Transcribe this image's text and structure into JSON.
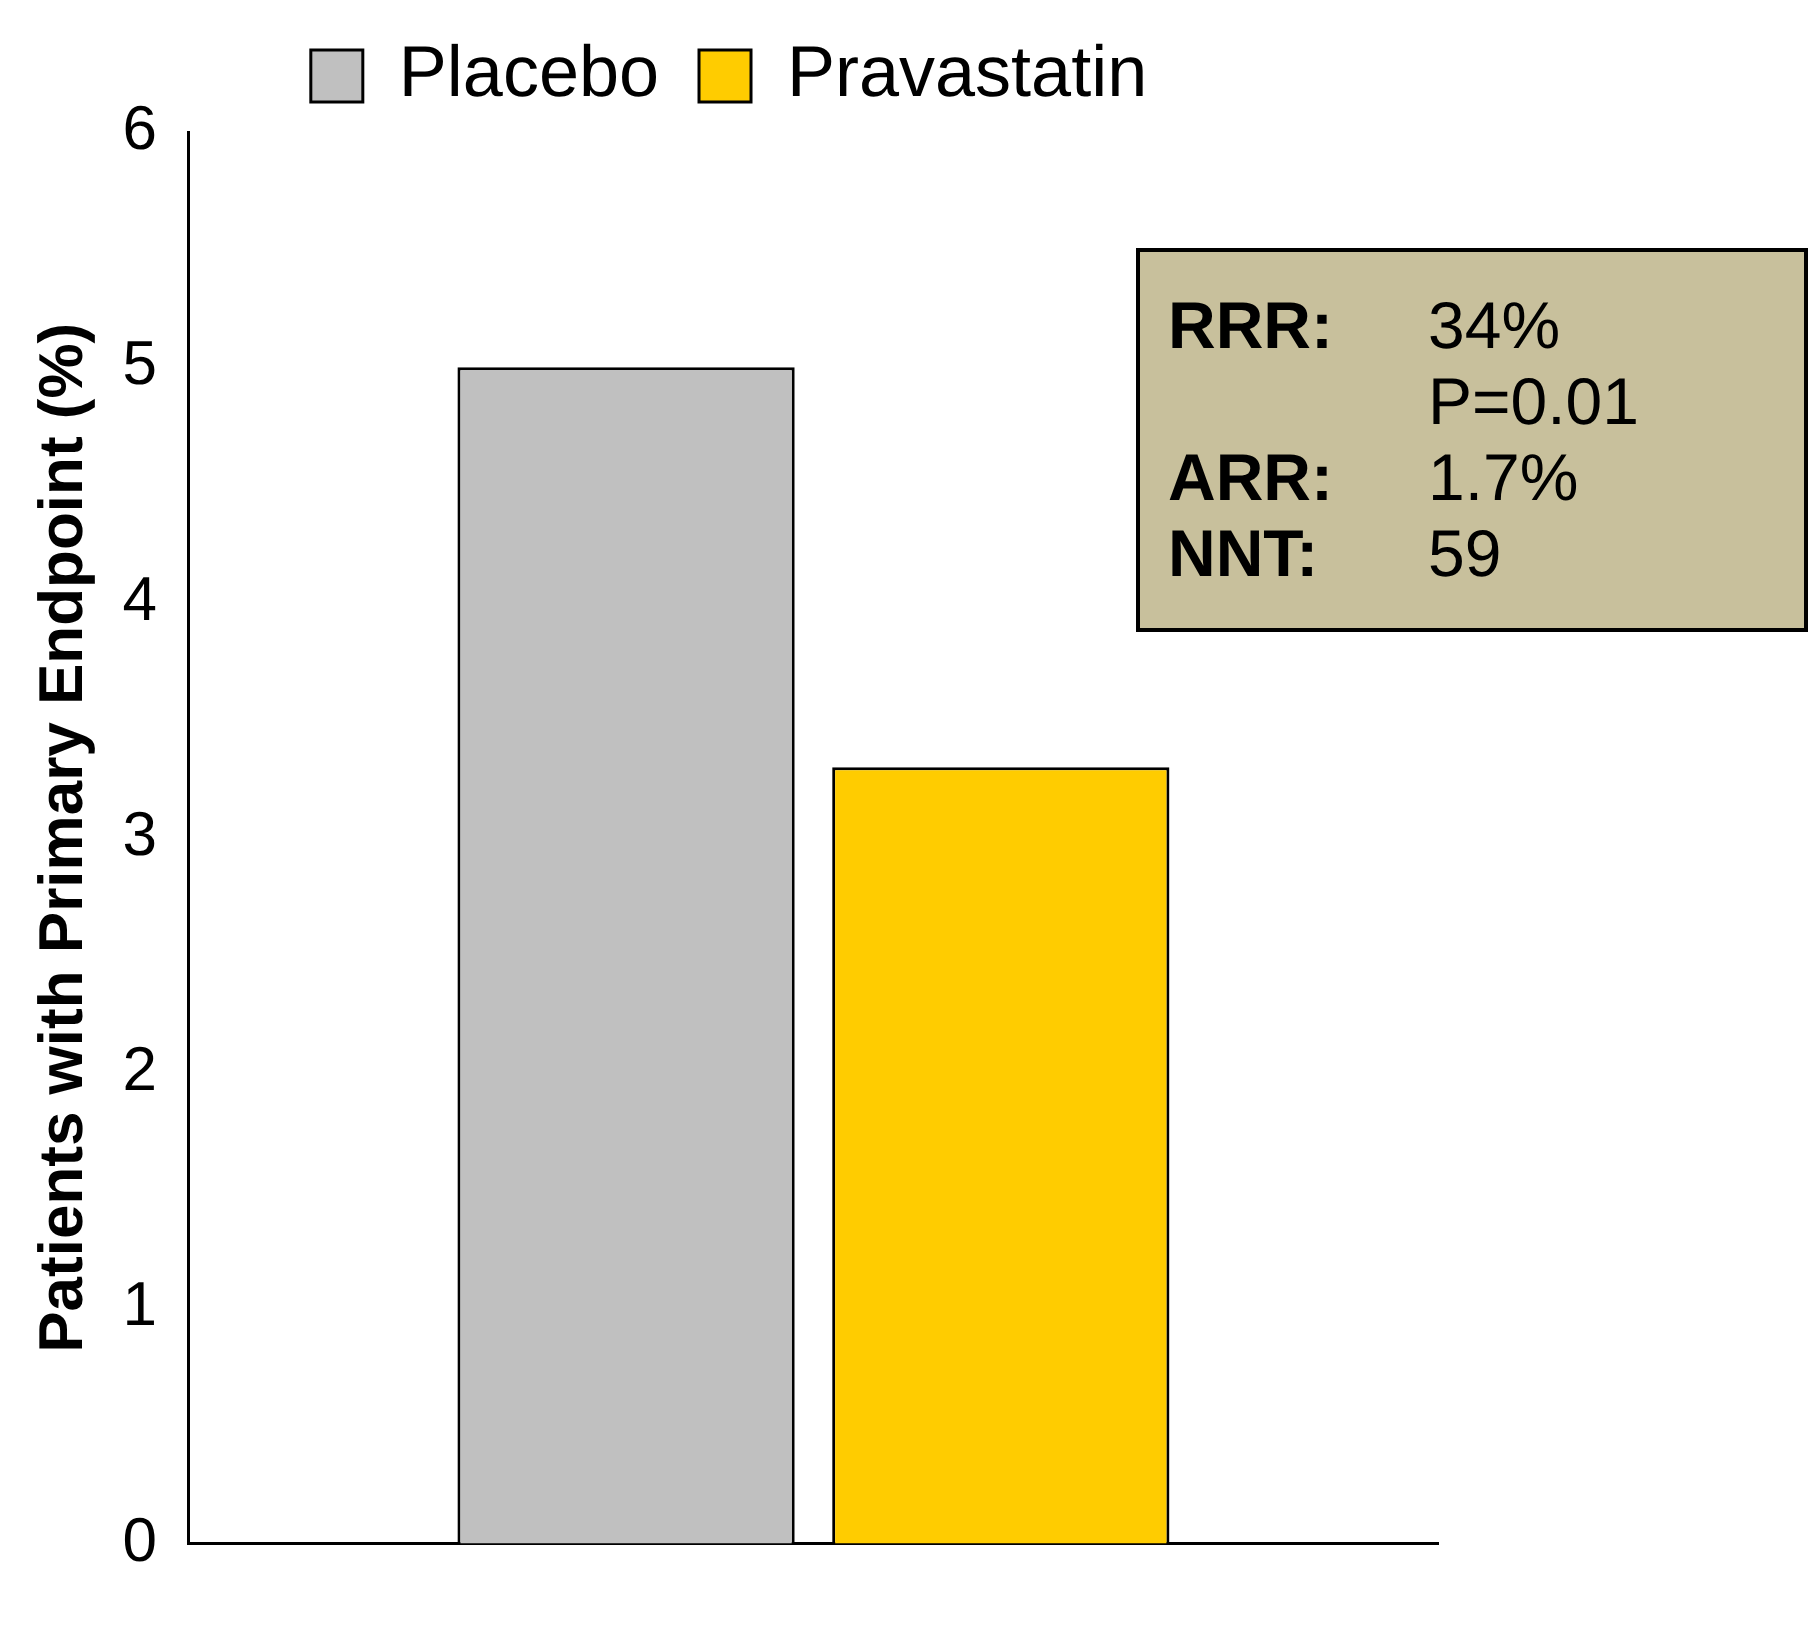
{
  "chart_data": {
    "type": "bar",
    "ylabel": "Patients with Primary Endpoint (%)",
    "categories": [
      null
    ],
    "series": [
      {
        "name": "Placebo",
        "color": "#c0c0c0",
        "values": [
          5.0
        ]
      },
      {
        "name": "Pravastatin",
        "color": "#ffcc00",
        "values": [
          3.3
        ]
      }
    ],
    "ylim": [
      0,
      6
    ],
    "yticks": [
      0,
      1,
      2,
      3,
      4,
      5,
      6
    ],
    "grid": false,
    "legend": "top",
    "annotations": [
      "RRR: 34%",
      "P=0.01",
      "ARR: 1.7%",
      "NNT: 59"
    ]
  }
}
